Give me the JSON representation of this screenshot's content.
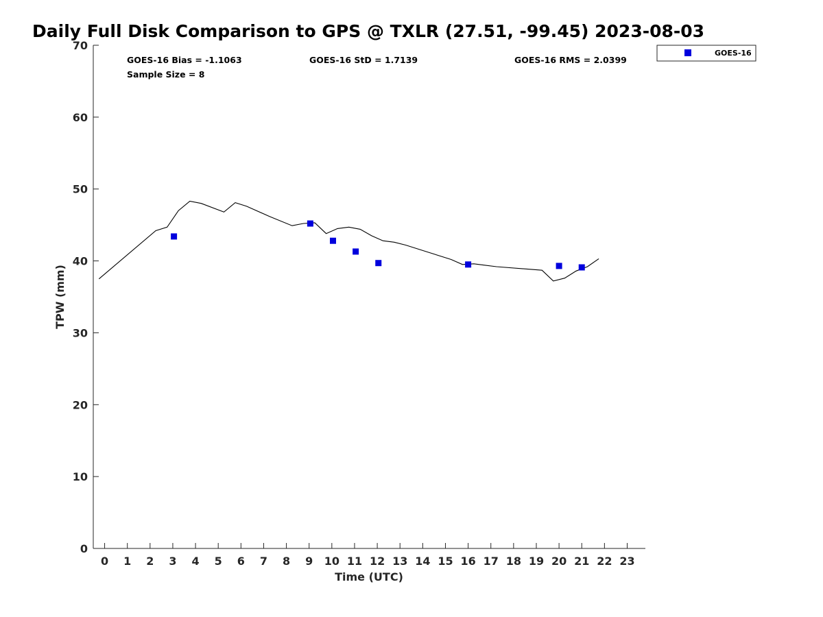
{
  "chart_data": {
    "type": "scatter",
    "title": "Daily Full Disk Comparison to GPS @ TXLR (27.51, -99.45) 2023-08-03",
    "xlabel": "Time (UTC)",
    "ylabel": "TPW (mm)",
    "xlim": [
      -0.5,
      23.8
    ],
    "ylim": [
      0,
      70
    ],
    "x_ticks": [
      0,
      1,
      2,
      3,
      4,
      5,
      6,
      7,
      8,
      9,
      10,
      11,
      12,
      13,
      14,
      15,
      16,
      17,
      18,
      19,
      20,
      21,
      22,
      23
    ],
    "y_ticks": [
      0,
      10,
      20,
      30,
      40,
      50,
      60,
      70
    ],
    "grid": false,
    "legend_position": "top-right, outside plot area",
    "stats": {
      "bias": "GOES-16 Bias = -1.1063",
      "std": "GOES-16 StD = 1.7139",
      "rms": "GOES-16 RMS = 2.0399",
      "sample_size": "Sample Size = 8"
    },
    "series": [
      {
        "kind": "line",
        "color": "#000000",
        "x": [
          -0.25,
          2.25,
          2.75,
          3.25,
          3.75,
          4.25,
          5.25,
          5.75,
          6.25,
          7.25,
          8.25,
          8.75,
          9.25,
          9.75,
          10.25,
          10.75,
          11.25,
          11.75,
          12.25,
          12.75,
          13.25,
          14.25,
          15.25,
          15.75,
          16.25,
          16.75,
          17.25,
          19.25,
          19.75,
          20.25,
          20.75,
          21.25,
          21.75
        ],
        "y": [
          37.5,
          44.2,
          44.7,
          47.0,
          48.3,
          48.0,
          46.8,
          48.1,
          47.6,
          46.2,
          44.9,
          45.2,
          45.3,
          43.8,
          44.5,
          44.7,
          44.4,
          43.5,
          42.8,
          42.6,
          42.2,
          41.2,
          40.2,
          39.5,
          39.6,
          39.4,
          39.2,
          38.7,
          37.2,
          37.6,
          38.6,
          39.2,
          40.3
        ]
      },
      {
        "kind": "scatter",
        "name": "GOES-16",
        "color": "#0000dd",
        "x": [
          3.05,
          9.05,
          10.05,
          11.05,
          12.05,
          16.0,
          20.0,
          21.0
        ],
        "y": [
          43.4,
          45.2,
          42.8,
          41.3,
          39.7,
          39.5,
          39.3,
          39.1
        ]
      }
    ]
  }
}
